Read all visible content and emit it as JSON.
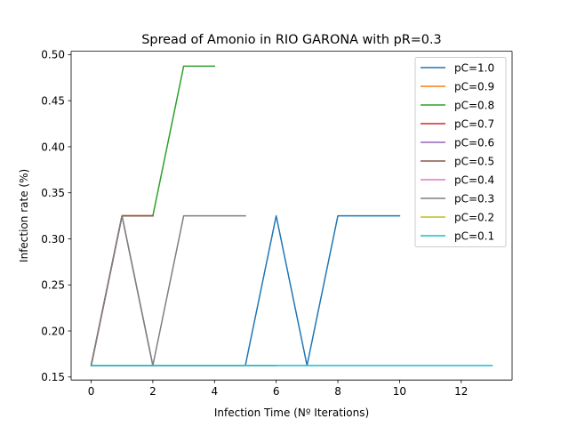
{
  "chart_data": {
    "type": "line",
    "title": "Spread of Amonio in RIO GARONA with pR=0.3",
    "xlabel": "Infection Time (Nº Iterations)",
    "ylabel": "Infection rate (%)",
    "xlim": [
      -0.65,
      13.65
    ],
    "ylim": [
      0.1467,
      0.5037
    ],
    "xticks": [
      0,
      2,
      4,
      6,
      8,
      10,
      12
    ],
    "yticks": [
      0.15,
      0.2,
      0.25,
      0.3,
      0.35,
      0.4,
      0.45,
      0.5
    ],
    "ytick_labels": [
      "0.15",
      "0.20",
      "0.25",
      "0.30",
      "0.35",
      "0.40",
      "0.45",
      "0.50"
    ],
    "grid": false,
    "legend_position": "top-right",
    "series": [
      {
        "name": "pC=1.0",
        "color": "#1f77b4",
        "x": [
          0,
          1,
          2,
          3,
          4,
          5,
          6,
          7,
          8,
          9,
          10
        ],
        "y": [
          0.1625,
          0.1625,
          0.1625,
          0.1625,
          0.1625,
          0.1625,
          0.325,
          0.1625,
          0.325,
          0.325,
          0.325
        ]
      },
      {
        "name": "pC=0.9",
        "color": "#ff7f0e",
        "x": [
          0,
          1,
          2
        ],
        "y": [
          0.1625,
          0.325,
          0.325
        ]
      },
      {
        "name": "pC=0.8",
        "color": "#2ca02c",
        "x": [
          0,
          1,
          2,
          3,
          4
        ],
        "y": [
          0.1625,
          0.325,
          0.325,
          0.4875,
          0.4875
        ]
      },
      {
        "name": "pC=0.7",
        "color": "#d62728",
        "x": [
          0,
          1,
          2
        ],
        "y": [
          0.1625,
          0.325,
          0.325
        ]
      },
      {
        "name": "pC=0.6",
        "color": "#9467bd",
        "x": [
          0,
          1,
          2
        ],
        "y": [
          0.1625,
          0.325,
          0.1625
        ]
      },
      {
        "name": "pC=0.5",
        "color": "#8c564b",
        "x": [
          0,
          1,
          2
        ],
        "y": [
          0.1625,
          0.325,
          0.325
        ]
      },
      {
        "name": "pC=0.4",
        "color": "#e377c2",
        "x": [
          0,
          1,
          2,
          3,
          4,
          5,
          6
        ],
        "y": [
          0.1625,
          0.1625,
          0.1625,
          0.1625,
          0.1625,
          0.1625,
          0.1625
        ]
      },
      {
        "name": "pC=0.3",
        "color": "#7f7f7f",
        "x": [
          0,
          1,
          2,
          3,
          4,
          5
        ],
        "y": [
          0.1625,
          0.325,
          0.1625,
          0.325,
          0.325,
          0.325
        ]
      },
      {
        "name": "pC=0.2",
        "color": "#bcbd22",
        "x": [
          0,
          1,
          2,
          3,
          4,
          5,
          6
        ],
        "y": [
          0.1625,
          0.1625,
          0.1625,
          0.1625,
          0.1625,
          0.1625,
          0.1625
        ]
      },
      {
        "name": "pC=0.1",
        "color": "#17becf",
        "x": [
          0,
          1,
          2,
          3,
          4,
          5,
          6,
          7,
          8,
          9,
          10,
          11,
          12,
          13
        ],
        "y": [
          0.1625,
          0.1625,
          0.1625,
          0.1625,
          0.1625,
          0.1625,
          0.1625,
          0.1625,
          0.1625,
          0.1625,
          0.1625,
          0.1625,
          0.1625,
          0.1625
        ]
      }
    ]
  }
}
